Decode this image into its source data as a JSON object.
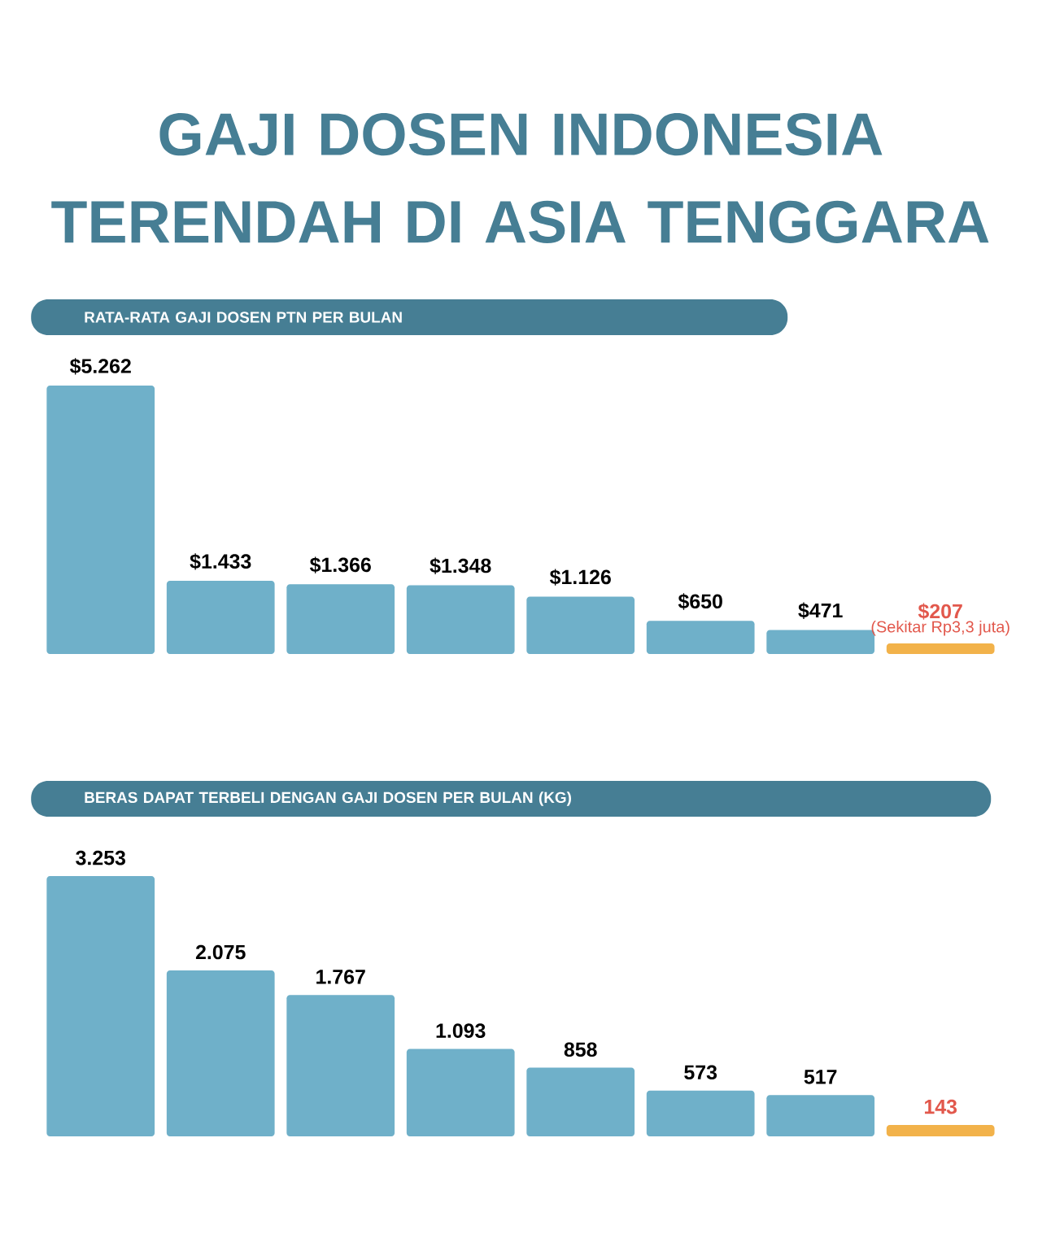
{
  "chart_data": [
    {
      "type": "bar",
      "title": "GAJI DOSEN INDONESIA TERENDAH DI ASIA TENGGARA",
      "subtitle": "RATA-RATA GAJI DOSEN PTN PER BULAN",
      "categories": [
        null,
        null,
        null,
        null,
        null,
        null,
        null,
        null
      ],
      "values": [
        5262,
        1433,
        1366,
        1348,
        1126,
        650,
        471,
        207
      ],
      "value_labels": [
        "$5.262",
        "$1.433",
        "$1.366",
        "$1.348",
        "$1.126",
        "$650",
        "$471",
        "$207"
      ],
      "colors": [
        "#6fb0c9",
        "#6fb0c9",
        "#6fb0c9",
        "#6fb0c9",
        "#6fb0c9",
        "#6fb0c9",
        "#6fb0c9",
        "#f2b24a"
      ],
      "annotations": [
        "(Sekitar Rp3,3 juta)"
      ]
    },
    {
      "type": "bar",
      "title": "BERAS DAPAT TERBELI DENGAN GAJI DOSEN PER BULAN (KG)",
      "categories": [
        null,
        null,
        null,
        null,
        null,
        null,
        null,
        null
      ],
      "values": [
        3253,
        2075,
        1767,
        1093,
        858,
        573,
        517,
        143
      ],
      "value_labels": [
        "3.253",
        "2.075",
        "1.767",
        "1.093",
        "858",
        "573",
        "517",
        "143"
      ],
      "colors": [
        "#6fb0c9",
        "#6fb0c9",
        "#6fb0c9",
        "#6fb0c9",
        "#6fb0c9",
        "#6fb0c9",
        "#6fb0c9",
        "#f2b24a"
      ]
    }
  ]
}
